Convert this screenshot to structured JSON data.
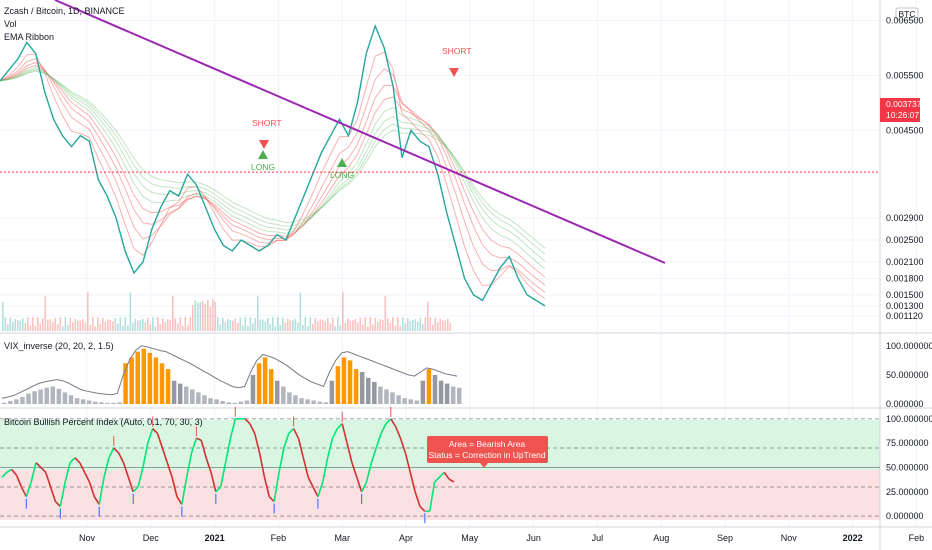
{
  "header": {
    "title": "Zcash / Bitcoin, 1D, BINANCE",
    "vol_label": "Vol",
    "ema_label": "EMA Ribbon",
    "currency_badge": "BTC"
  },
  "colors": {
    "up": "#26a69a",
    "down": "#ef5350",
    "trendline": "#9c27b0",
    "short_marker": "#ef5350",
    "long_marker": "#4caf50",
    "bull_zone": "#d9f6e3",
    "bear_zone": "#fbe1e1",
    "price_tag": "#f23645",
    "tooltip_bg": "#ef5350"
  },
  "chart_data": [
    {
      "type": "line",
      "pane": "price",
      "title": "Zcash / Bitcoin, 1D, BINANCE",
      "y_axis_ticks": [
        "0.006500",
        "0.005500",
        "0.004500",
        "0.003737",
        "0.002900",
        "0.002500",
        "0.002100",
        "0.001800",
        "0.001500",
        "0.001300",
        "0.001120"
      ],
      "ylim": [
        0.00108,
        0.0068
      ],
      "last_price": "0.003737",
      "countdown": "10:26:07",
      "x_axis_ticks": [
        "Nov",
        "Dec",
        "2021",
        "Feb",
        "Mar",
        "Apr",
        "May",
        "Jun",
        "Jul",
        "Aug",
        "Sep",
        "Nov",
        "2022",
        "Feb"
      ],
      "series": [
        {
          "values": [
            0.0054,
            0.0056,
            0.0058,
            0.0061,
            0.0059,
            0.0052,
            0.0047,
            0.0044,
            0.0042,
            0.0044,
            0.0043,
            0.0036,
            0.0033,
            0.0029,
            0.0023,
            0.0019,
            0.0021,
            0.0027,
            0.0031,
            0.0034,
            0.0033,
            0.0037,
            0.0035,
            0.0031,
            0.0027,
            0.0024,
            0.0023,
            0.0025,
            0.0024,
            0.0023,
            0.0024,
            0.0026,
            0.0025,
            0.0029,
            0.0033,
            0.0037,
            0.0041,
            0.0044,
            0.0047,
            0.0044,
            0.005,
            0.0059,
            0.0064,
            0.006,
            0.0053,
            0.004,
            0.0045,
            0.0043,
            0.0042,
            0.0037,
            0.003,
            0.0024,
            0.0018,
            0.0015,
            0.0014,
            0.0017,
            0.002,
            0.0022,
            0.0018,
            0.0015,
            0.0014,
            0.0013
          ]
        }
      ],
      "annotations": [
        {
          "text": "SHORT",
          "kind": "short"
        },
        {
          "text": "SHORT",
          "kind": "short"
        },
        {
          "text": "LONG",
          "kind": "long"
        },
        {
          "text": "LONG",
          "kind": "long"
        }
      ]
    },
    {
      "type": "bar",
      "pane": "vix",
      "title": "VIX_inverse (20, 20, 2, 1.5)",
      "y_axis_ticks": [
        "100.000000",
        "50.000000",
        "0.000000"
      ],
      "ylim": [
        0,
        110
      ],
      "values": [
        2,
        5,
        8,
        12,
        18,
        22,
        25,
        28,
        30,
        26,
        20,
        15,
        10,
        8,
        6,
        4,
        3,
        2,
        2,
        3,
        70,
        80,
        90,
        95,
        88,
        80,
        70,
        60,
        40,
        35,
        30,
        25,
        20,
        15,
        10,
        8,
        5,
        3,
        2,
        4,
        6,
        50,
        70,
        80,
        60,
        40,
        30,
        20,
        15,
        10,
        8,
        6,
        4,
        3,
        40,
        65,
        80,
        75,
        60,
        55,
        45,
        38,
        30,
        25,
        20,
        15,
        10,
        8,
        6,
        40,
        60,
        50,
        40,
        35,
        30,
        28
      ],
      "envelope": [
        10,
        12,
        15,
        20,
        25,
        30,
        35,
        38,
        40,
        42,
        40,
        36,
        30,
        25,
        22,
        20,
        18,
        17,
        16,
        18,
        50,
        75,
        92,
        100,
        98,
        95,
        92,
        90,
        85,
        80,
        75,
        70,
        64,
        58,
        52,
        46,
        40,
        35,
        30,
        28,
        30,
        55,
        75,
        85,
        82,
        78,
        72,
        66,
        58,
        50,
        44,
        38,
        34,
        30,
        55,
        75,
        88,
        90,
        86,
        82,
        78,
        74,
        70,
        66,
        62,
        58,
        54,
        50,
        48,
        55,
        62,
        60,
        56,
        52,
        50,
        48
      ]
    },
    {
      "type": "line",
      "pane": "bpi",
      "title": "Bitcoin Bullish Percent Index (Auto, 0.1, 70, 30, 3)",
      "y_axis_ticks": [
        "100.000000",
        "75.000000",
        "50.000000",
        "25.000000",
        "0.000000"
      ],
      "ylim": [
        -6,
        106
      ],
      "series": [
        {
          "values": [
            40,
            45,
            48,
            42,
            30,
            20,
            35,
            55,
            50,
            45,
            30,
            15,
            10,
            35,
            55,
            60,
            55,
            45,
            35,
            20,
            12,
            40,
            60,
            70,
            65,
            55,
            40,
            25,
            30,
            50,
            75,
            90,
            85,
            70,
            55,
            40,
            20,
            12,
            40,
            65,
            80,
            78,
            60,
            45,
            25,
            30,
            55,
            80,
            100,
            100,
            100,
            95,
            85,
            65,
            40,
            20,
            15,
            45,
            70,
            85,
            90,
            80,
            60,
            40,
            30,
            20,
            35,
            60,
            80,
            90,
            95,
            75,
            55,
            40,
            25,
            35,
            55,
            70,
            85,
            95,
            100,
            92,
            80,
            65,
            45,
            25,
            10,
            5,
            5,
            35,
            40,
            45,
            38,
            35
          ]
        }
      ],
      "tooltip": {
        "line1": "Area = Bearish Area",
        "line2": "Status =  Correction in UpTrend"
      }
    }
  ]
}
